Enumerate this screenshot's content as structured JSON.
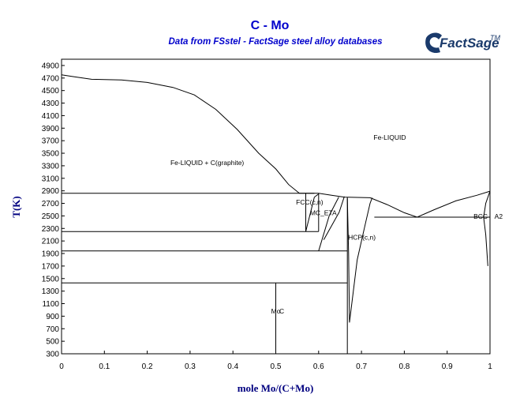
{
  "chart_data": {
    "type": "line",
    "title": "C - Mo",
    "subtitle": "Data from FSstel - FactSage steel alloy databases",
    "xlabel": "mole Mo/(C+Mo)",
    "ylabel": "T(K)",
    "xlim": [
      0,
      1
    ],
    "ylim": [
      300,
      5000
    ],
    "x_ticks": [
      0,
      0.1,
      0.2,
      0.3,
      0.4,
      0.5,
      0.6,
      0.7,
      0.8,
      0.9,
      1
    ],
    "y_ticks": [
      300,
      500,
      700,
      900,
      1100,
      1300,
      1500,
      1700,
      1900,
      2100,
      2300,
      2500,
      2700,
      2900,
      3100,
      3300,
      3500,
      3700,
      3900,
      4100,
      4300,
      4500,
      4700,
      4900
    ],
    "grid": false,
    "logo": {
      "brand": "FactSage",
      "mark": "TM"
    },
    "series": [
      {
        "points": [
          [
            0,
            4750
          ],
          [
            0.03,
            4720
          ],
          [
            0.07,
            4680
          ],
          [
            0.14,
            4670
          ],
          [
            0.2,
            4630
          ],
          [
            0.26,
            4550
          ],
          [
            0.31,
            4430
          ],
          [
            0.36,
            4200
          ],
          [
            0.41,
            3880
          ],
          [
            0.46,
            3500
          ],
          [
            0.5,
            3250
          ],
          [
            0.53,
            3000
          ],
          [
            0.555,
            2860
          ]
        ]
      },
      {
        "points": [
          [
            0.555,
            2860
          ],
          [
            0.6,
            2860
          ],
          [
            0.63,
            2830
          ],
          [
            0.66,
            2800
          ],
          [
            0.72,
            2790
          ]
        ]
      },
      {
        "points": [
          [
            0.72,
            2790
          ],
          [
            0.76,
            2680
          ],
          [
            0.8,
            2550
          ],
          [
            0.83,
            2480
          ],
          [
            0.87,
            2600
          ],
          [
            0.92,
            2740
          ],
          [
            0.97,
            2830
          ],
          [
            1,
            2895
          ]
        ]
      },
      {
        "points": [
          [
            0,
            2860
          ],
          [
            0.59,
            2860
          ]
        ]
      },
      {
        "points": [
          [
            0,
            2250
          ],
          [
            0.6,
            2250
          ]
        ]
      },
      {
        "points": [
          [
            0,
            1940
          ],
          [
            0.667,
            1940
          ]
        ]
      },
      {
        "points": [
          [
            0,
            1430
          ],
          [
            0.667,
            1430
          ]
        ]
      },
      {
        "points": [
          [
            0.5,
            1430
          ],
          [
            0.5,
            300
          ]
        ]
      },
      {
        "points": [
          [
            0.667,
            2800
          ],
          [
            0.667,
            300
          ]
        ]
      },
      {
        "points": [
          [
            0.73,
            2480
          ],
          [
            1,
            2480
          ]
        ]
      },
      {
        "points": [
          [
            0.57,
            2860
          ],
          [
            0.57,
            2250
          ]
        ]
      },
      {
        "points": [
          [
            0.57,
            2250
          ],
          [
            0.59,
            2800
          ]
        ]
      },
      {
        "points": [
          [
            0.6,
            2250
          ],
          [
            0.6,
            2860
          ]
        ]
      },
      {
        "points": [
          [
            0.59,
            2800
          ],
          [
            0.6,
            2850
          ]
        ]
      },
      {
        "points": [
          [
            0.6,
            1940
          ],
          [
            0.625,
            2510
          ]
        ]
      },
      {
        "points": [
          [
            0.625,
            2510
          ],
          [
            0.647,
            2800
          ]
        ]
      },
      {
        "points": [
          [
            0.612,
            2120
          ],
          [
            0.648,
            2560
          ]
        ]
      },
      {
        "points": [
          [
            0.648,
            2560
          ],
          [
            0.66,
            2810
          ]
        ]
      },
      {
        "points": [
          [
            0.667,
            2780
          ],
          [
            0.67,
            1900
          ],
          [
            0.672,
            800
          ]
        ]
      },
      {
        "points": [
          [
            0.672,
            800
          ],
          [
            0.69,
            1800
          ],
          [
            0.71,
            2400
          ],
          [
            0.72,
            2700
          ],
          [
            0.725,
            2790
          ]
        ]
      },
      {
        "points": [
          [
            0.985,
            2480
          ],
          [
            0.99,
            2700
          ],
          [
            1,
            2895
          ]
        ]
      },
      {
        "points": [
          [
            0.985,
            2480
          ],
          [
            0.99,
            2200
          ],
          [
            0.995,
            1700
          ]
        ]
      }
    ],
    "annotations": [
      {
        "text": "Fe-LIQUID",
        "x": 0.766,
        "y": 3750
      },
      {
        "text": "Fe-LIQUID + C(graphite)",
        "x": 0.34,
        "y": 3350
      },
      {
        "text": "FCC(c,n)",
        "x": 0.579,
        "y": 2720
      },
      {
        "text": "MC_ETA",
        "x": 0.611,
        "y": 2550
      },
      {
        "text": "HCP(c,n)",
        "x": 0.701,
        "y": 2160
      },
      {
        "text": "BCC",
        "x": 0.978,
        "y": 2490
      },
      {
        "text": "A2",
        "x": 1.02,
        "y": 2490
      },
      {
        "text": "Mo",
        "x": 0.5,
        "y": 980
      },
      {
        "text": "C",
        "x": 0.514,
        "y": 980
      }
    ]
  }
}
